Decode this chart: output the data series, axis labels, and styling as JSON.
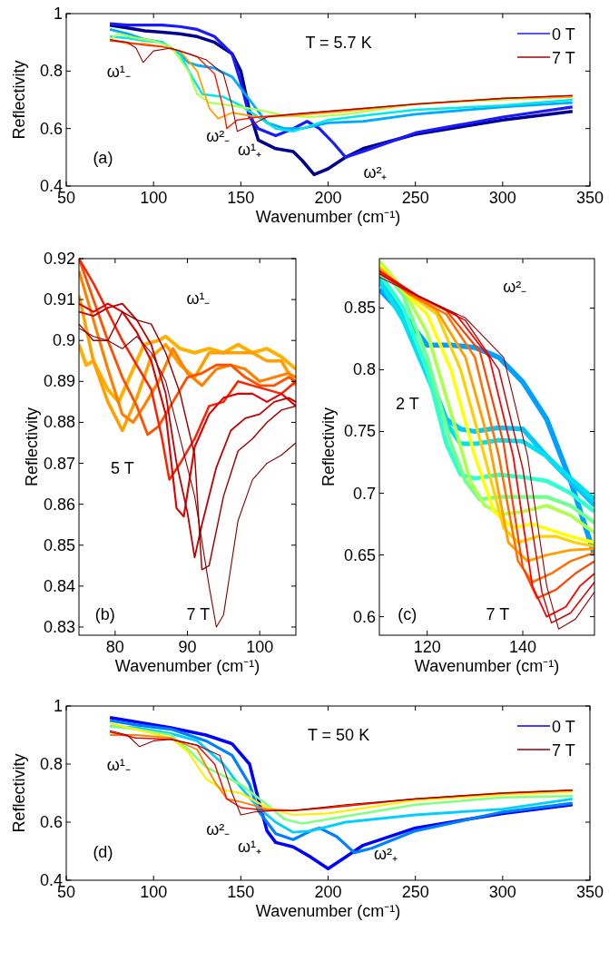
{
  "chart_data": [
    {
      "type": "line",
      "xlabel": "Wavenumber (cm⁻¹)",
      "ylabel": "Reflectivity",
      "xlim": [
        50,
        350
      ],
      "ylim": [
        0.4,
        1
      ],
      "xticks": [
        50,
        100,
        150,
        200,
        250,
        300,
        350
      ],
      "yticks": [
        0.4,
        0.6,
        0.8,
        1
      ],
      "legend": "top right",
      "annotations": [
        "T = 5.7 K",
        "(a)",
        "ω¹₋",
        "ω²₋",
        "ω¹₊",
        "ω²₊"
      ],
      "series": [
        {
          "color": "#00008f",
          "x": [
            75,
            85,
            95,
            105,
            115,
            125,
            135,
            145,
            150,
            155,
            160,
            170,
            180,
            185,
            192,
            200,
            210,
            220,
            250,
            300,
            340
          ],
          "values": [
            0.96,
            0.95,
            0.94,
            0.935,
            0.93,
            0.92,
            0.9,
            0.86,
            0.8,
            0.66,
            0.56,
            0.53,
            0.52,
            0.49,
            0.44,
            0.46,
            0.5,
            0.53,
            0.58,
            0.63,
            0.66
          ]
        },
        {
          "name": "0 T",
          "color": "#1a1aff",
          "x": [
            75,
            85,
            95,
            105,
            115,
            125,
            135,
            145,
            150,
            155,
            160,
            170,
            180,
            188,
            195,
            203,
            210,
            220,
            250,
            300,
            340
          ],
          "values": [
            0.965,
            0.96,
            0.96,
            0.96,
            0.955,
            0.945,
            0.92,
            0.86,
            0.76,
            0.64,
            0.6,
            0.575,
            0.6,
            0.625,
            0.6,
            0.55,
            0.5,
            0.52,
            0.585,
            0.64,
            0.675
          ]
        },
        {
          "color": "#00aaff",
          "x": [
            75,
            85,
            95,
            105,
            115,
            120,
            125,
            135,
            145,
            155,
            165,
            175,
            185,
            200,
            220,
            250,
            300,
            340
          ],
          "values": [
            0.945,
            0.93,
            0.91,
            0.9,
            0.86,
            0.83,
            0.82,
            0.81,
            0.78,
            0.7,
            0.62,
            0.6,
            0.6,
            0.62,
            0.625,
            0.65,
            0.675,
            0.69
          ]
        },
        {
          "color": "#00e8e8",
          "x": [
            75,
            85,
            95,
            105,
            115,
            122,
            128,
            140,
            150,
            160,
            170,
            180,
            200,
            220,
            250,
            300,
            340
          ],
          "values": [
            0.92,
            0.915,
            0.905,
            0.9,
            0.86,
            0.78,
            0.72,
            0.71,
            0.68,
            0.64,
            0.6,
            0.59,
            0.63,
            0.645,
            0.665,
            0.68,
            0.7
          ]
        },
        {
          "color": "#b0ff50",
          "x": [
            75,
            80,
            90,
            100,
            110,
            120,
            125,
            132,
            145,
            160,
            175,
            190,
            210,
            250,
            300,
            340
          ],
          "values": [
            0.91,
            0.93,
            0.915,
            0.905,
            0.885,
            0.8,
            0.72,
            0.69,
            0.68,
            0.665,
            0.645,
            0.64,
            0.65,
            0.685,
            0.7,
            0.71
          ]
        },
        {
          "color": "#ffa000",
          "x": [
            75,
            85,
            95,
            105,
            115,
            125,
            132,
            137,
            145,
            160,
            180,
            210,
            250,
            300,
            340
          ],
          "values": [
            0.91,
            0.895,
            0.895,
            0.885,
            0.87,
            0.8,
            0.67,
            0.635,
            0.655,
            0.64,
            0.645,
            0.66,
            0.685,
            0.705,
            0.71
          ]
        },
        {
          "color": "#ff2000",
          "x": [
            75,
            85,
            95,
            105,
            115,
            125,
            135,
            140,
            142,
            148,
            160,
            180,
            210,
            250,
            300,
            340
          ],
          "values": [
            0.905,
            0.9,
            0.89,
            0.885,
            0.87,
            0.85,
            0.79,
            0.67,
            0.6,
            0.63,
            0.64,
            0.65,
            0.665,
            0.685,
            0.705,
            0.715
          ]
        },
        {
          "name": "7 T",
          "color": "#a00000",
          "x": [
            75,
            85,
            90,
            94,
            100,
            110,
            120,
            130,
            140,
            145,
            148,
            155,
            165,
            180,
            210,
            250,
            300,
            340
          ],
          "values": [
            0.91,
            0.9,
            0.88,
            0.83,
            0.87,
            0.88,
            0.86,
            0.84,
            0.79,
            0.68,
            0.59,
            0.61,
            0.64,
            0.65,
            0.665,
            0.685,
            0.705,
            0.715
          ]
        }
      ]
    },
    {
      "type": "line",
      "xlabel": "Wavenumber (cm⁻¹)",
      "ylabel": "Reflectivity",
      "xlim": [
        75,
        105
      ],
      "ylim": [
        0.828,
        0.92
      ],
      "xticks": [
        80,
        90,
        100
      ],
      "yticks": [
        0.83,
        0.84,
        0.85,
        0.86,
        0.87,
        0.88,
        0.89,
        0.9,
        0.91,
        0.92
      ],
      "annotations": [
        "(b)",
        "ω¹₋",
        "5 T",
        "7 T"
      ],
      "series": [
        {
          "color": "#ffb000",
          "x": [
            75,
            76,
            77,
            79,
            80.5,
            82,
            84,
            86,
            87,
            89,
            91,
            93,
            95,
            97,
            99,
            101,
            103,
            105
          ],
          "values": [
            0.899,
            0.894,
            0.895,
            0.888,
            0.885,
            0.891,
            0.899,
            0.9,
            0.901,
            0.898,
            0.897,
            0.898,
            0.897,
            0.899,
            0.897,
            0.898,
            0.896,
            0.893
          ]
        },
        {
          "color": "#ffa000",
          "x": [
            75,
            77,
            79,
            81,
            83,
            85,
            87,
            89,
            91,
            93,
            95,
            97,
            99,
            101,
            103,
            105
          ],
          "values": [
            0.911,
            0.895,
            0.885,
            0.878,
            0.886,
            0.896,
            0.899,
            0.894,
            0.891,
            0.897,
            0.897,
            0.897,
            0.897,
            0.895,
            0.895,
            0.889
          ]
        },
        {
          "color": "#ff8000",
          "x": [
            75,
            77,
            79,
            81,
            82.5,
            84,
            86,
            88,
            90,
            92,
            94,
            96,
            98,
            100,
            102,
            104,
            105
          ],
          "values": [
            0.917,
            0.905,
            0.893,
            0.882,
            0.88,
            0.884,
            0.89,
            0.898,
            0.892,
            0.889,
            0.893,
            0.894,
            0.893,
            0.89,
            0.891,
            0.892,
            0.891
          ]
        },
        {
          "color": "#ff5000",
          "x": [
            75,
            77,
            79,
            81,
            83,
            84.5,
            86,
            88,
            90,
            92,
            94,
            96,
            98,
            100,
            102,
            104,
            105
          ],
          "values": [
            0.92,
            0.91,
            0.9,
            0.891,
            0.884,
            0.877,
            0.879,
            0.885,
            0.891,
            0.892,
            0.894,
            0.894,
            0.891,
            0.889,
            0.889,
            0.891,
            0.89
          ]
        },
        {
          "color": "#ff2000",
          "x": [
            75,
            77,
            79,
            81,
            83,
            85,
            86.5,
            87.5,
            89,
            91,
            93,
            95,
            97,
            99,
            101,
            103,
            105
          ],
          "values": [
            0.92,
            0.914,
            0.907,
            0.9,
            0.894,
            0.888,
            0.876,
            0.866,
            0.87,
            0.876,
            0.884,
            0.885,
            0.89,
            0.889,
            0.888,
            0.887,
            0.89
          ]
        },
        {
          "color": "#e00000",
          "x": [
            75,
            77,
            79,
            81,
            83,
            85,
            87,
            88.5,
            89.5,
            91,
            93,
            95,
            97,
            99,
            101,
            103,
            105
          ],
          "values": [
            0.909,
            0.907,
            0.909,
            0.907,
            0.902,
            0.895,
            0.882,
            0.859,
            0.857,
            0.874,
            0.882,
            0.886,
            0.887,
            0.887,
            0.885,
            0.887,
            0.884
          ]
        },
        {
          "color": "#c00000",
          "x": [
            75,
            77,
            79,
            81,
            83,
            85,
            87,
            88.5,
            90,
            91,
            92,
            94,
            96,
            98,
            100,
            102,
            104,
            105
          ],
          "values": [
            0.907,
            0.906,
            0.908,
            0.909,
            0.905,
            0.899,
            0.887,
            0.87,
            0.858,
            0.847,
            0.855,
            0.869,
            0.878,
            0.881,
            0.882,
            0.885,
            0.886,
            0.885
          ]
        },
        {
          "color": "#a00000",
          "x": [
            75,
            77,
            79,
            81,
            83,
            85,
            87,
            89,
            91,
            92,
            93,
            95,
            97,
            99,
            101,
            103,
            105
          ],
          "values": [
            0.904,
            0.9,
            0.9,
            0.907,
            0.905,
            0.904,
            0.897,
            0.887,
            0.872,
            0.844,
            0.845,
            0.862,
            0.873,
            0.876,
            0.88,
            0.883,
            0.884
          ]
        },
        {
          "color": "#800000",
          "x": [
            75,
            77,
            79,
            81,
            83,
            85,
            87,
            89,
            91,
            93,
            94,
            95,
            97,
            99,
            101,
            103,
            105
          ],
          "values": [
            0.903,
            0.901,
            0.9,
            0.898,
            0.901,
            0.897,
            0.89,
            0.876,
            0.862,
            0.84,
            0.83,
            0.833,
            0.856,
            0.866,
            0.87,
            0.872,
            0.875
          ]
        }
      ]
    },
    {
      "type": "line",
      "xlabel": "Wavenumber (cm⁻¹)",
      "ylabel": "Reflectivity",
      "xlim": [
        110,
        155
      ],
      "ylim": [
        0.585,
        0.89
      ],
      "xticks": [
        120,
        140
      ],
      "yticks": [
        0.6,
        0.65,
        0.7,
        0.75,
        0.8,
        0.85
      ],
      "annotations": [
        "(c)",
        "ω²₋",
        "2 T",
        "7 T"
      ],
      "series": [
        {
          "color": "#00a0ff",
          "x": [
            110,
            115,
            120,
            125,
            130,
            135,
            140,
            145,
            150,
            155
          ],
          "values": [
            0.865,
            0.845,
            0.82,
            0.82,
            0.818,
            0.81,
            0.79,
            0.76,
            0.71,
            0.65
          ]
        },
        {
          "color": "#00c8ff",
          "x": [
            110,
            115,
            120,
            124,
            127,
            130,
            135,
            140,
            145,
            150,
            155
          ],
          "values": [
            0.875,
            0.845,
            0.8,
            0.76,
            0.752,
            0.75,
            0.753,
            0.752,
            0.73,
            0.71,
            0.69
          ]
        },
        {
          "color": "#00e0f0",
          "x": [
            110,
            115,
            120,
            124,
            127,
            130,
            135,
            140,
            145,
            150,
            155
          ],
          "values": [
            0.872,
            0.84,
            0.795,
            0.757,
            0.74,
            0.74,
            0.743,
            0.742,
            0.73,
            0.712,
            0.695
          ]
        },
        {
          "color": "#30ffd0",
          "x": [
            110,
            115,
            120,
            124,
            127,
            130,
            135,
            140,
            145,
            150,
            155
          ],
          "values": [
            0.878,
            0.85,
            0.8,
            0.74,
            0.715,
            0.712,
            0.715,
            0.713,
            0.71,
            0.7,
            0.685
          ]
        },
        {
          "color": "#70ff90",
          "x": [
            110,
            115,
            120,
            125,
            128,
            131,
            135,
            140,
            145,
            150,
            155
          ],
          "values": [
            0.885,
            0.86,
            0.81,
            0.74,
            0.71,
            0.695,
            0.697,
            0.697,
            0.697,
            0.69,
            0.676
          ]
        },
        {
          "color": "#b0ff50",
          "x": [
            110,
            115,
            120,
            125,
            129,
            132,
            136,
            140,
            145,
            150,
            155
          ],
          "values": [
            0.888,
            0.865,
            0.83,
            0.765,
            0.71,
            0.69,
            0.683,
            0.685,
            0.69,
            0.682,
            0.668
          ]
        },
        {
          "color": "#ffff00",
          "x": [
            110,
            116,
            120,
            125,
            130,
            134,
            138,
            142,
            146,
            150,
            155
          ],
          "values": [
            0.885,
            0.86,
            0.845,
            0.8,
            0.73,
            0.685,
            0.672,
            0.675,
            0.67,
            0.665,
            0.66
          ]
        },
        {
          "color": "#ffd000",
          "x": [
            110,
            116,
            122,
            127,
            132,
            136,
            139,
            143,
            147,
            151,
            155
          ],
          "values": [
            0.883,
            0.862,
            0.845,
            0.8,
            0.73,
            0.672,
            0.66,
            0.665,
            0.665,
            0.66,
            0.657
          ]
        },
        {
          "color": "#ffa000",
          "x": [
            110,
            116,
            122,
            128,
            133,
            137,
            141,
            145,
            150,
            155
          ],
          "values": [
            0.882,
            0.862,
            0.848,
            0.81,
            0.74,
            0.66,
            0.645,
            0.65,
            0.654,
            0.655
          ]
        },
        {
          "color": "#ff7000",
          "x": [
            110,
            116,
            124,
            130,
            135,
            139,
            142,
            146,
            150,
            155
          ],
          "values": [
            0.88,
            0.862,
            0.845,
            0.81,
            0.73,
            0.645,
            0.628,
            0.635,
            0.645,
            0.652
          ]
        },
        {
          "color": "#ff4000",
          "x": [
            110,
            116,
            124,
            131,
            136,
            140,
            143,
            147,
            151,
            155
          ],
          "values": [
            0.878,
            0.863,
            0.848,
            0.815,
            0.74,
            0.64,
            0.615,
            0.622,
            0.635,
            0.645
          ]
        },
        {
          "color": "#ff0000",
          "x": [
            110,
            118,
            126,
            133,
            138,
            142,
            145,
            149,
            152,
            155
          ],
          "values": [
            0.88,
            0.86,
            0.845,
            0.81,
            0.73,
            0.625,
            0.6,
            0.608,
            0.625,
            0.635
          ]
        },
        {
          "color": "#d00000",
          "x": [
            110,
            118,
            128,
            135,
            140,
            144,
            146,
            150,
            155
          ],
          "values": [
            0.878,
            0.86,
            0.84,
            0.8,
            0.72,
            0.62,
            0.595,
            0.603,
            0.628
          ]
        },
        {
          "color": "#900000",
          "x": [
            110,
            118,
            128,
            136,
            141,
            145,
            147.5,
            151,
            155
          ],
          "values": [
            0.875,
            0.86,
            0.842,
            0.81,
            0.73,
            0.625,
            0.59,
            0.598,
            0.62
          ]
        }
      ]
    },
    {
      "type": "line",
      "xlabel": "Wavenumber (cm⁻¹)",
      "ylabel": "Reflectivity",
      "xlim": [
        50,
        350
      ],
      "ylim": [
        0.4,
        1
      ],
      "xticks": [
        50,
        100,
        150,
        200,
        250,
        300,
        350
      ],
      "yticks": [
        0.4,
        0.6,
        0.8,
        1
      ],
      "legend": "top right",
      "annotations": [
        "T = 50 K",
        "(d)",
        "ω¹₋",
        "ω²₋",
        "ω¹₊",
        "ω²₊"
      ],
      "series": [
        {
          "name": "0 T",
          "color": "#0000ff",
          "x": [
            75,
            90,
            110,
            130,
            145,
            155,
            160,
            165,
            170,
            180,
            190,
            200,
            210,
            220,
            250,
            300,
            340
          ],
          "values": [
            0.96,
            0.945,
            0.925,
            0.9,
            0.87,
            0.8,
            0.68,
            0.57,
            0.53,
            0.515,
            0.48,
            0.44,
            0.48,
            0.52,
            0.58,
            0.63,
            0.66
          ]
        },
        {
          "color": "#0080ff",
          "x": [
            75,
            90,
            110,
            130,
            145,
            155,
            160,
            170,
            180,
            190,
            195,
            205,
            215,
            225,
            250,
            300,
            340
          ],
          "values": [
            0.95,
            0.935,
            0.92,
            0.88,
            0.83,
            0.73,
            0.64,
            0.56,
            0.54,
            0.57,
            0.58,
            0.55,
            0.495,
            0.51,
            0.57,
            0.635,
            0.665
          ]
        },
        {
          "color": "#00d0ff",
          "x": [
            75,
            90,
            110,
            125,
            140,
            150,
            160,
            170,
            180,
            190,
            210,
            250,
            300,
            340
          ],
          "values": [
            0.93,
            0.925,
            0.905,
            0.88,
            0.8,
            0.72,
            0.65,
            0.6,
            0.565,
            0.57,
            0.6,
            0.625,
            0.645,
            0.68
          ]
        },
        {
          "color": "#80ff80",
          "x": [
            75,
            90,
            110,
            120,
            130,
            140,
            150,
            165,
            175,
            185,
            200,
            250,
            300,
            340
          ],
          "values": [
            0.93,
            0.92,
            0.9,
            0.85,
            0.79,
            0.76,
            0.73,
            0.66,
            0.61,
            0.595,
            0.61,
            0.66,
            0.685,
            0.69
          ]
        },
        {
          "color": "#ffee00",
          "x": [
            75,
            90,
            110,
            120,
            130,
            140,
            150,
            165,
            180,
            200,
            250,
            300,
            340
          ],
          "values": [
            0.94,
            0.92,
            0.89,
            0.84,
            0.75,
            0.71,
            0.7,
            0.65,
            0.625,
            0.63,
            0.675,
            0.695,
            0.705
          ]
        },
        {
          "color": "#ff8000",
          "x": [
            75,
            90,
            110,
            125,
            135,
            142,
            150,
            165,
            180,
            200,
            250,
            300,
            340
          ],
          "values": [
            0.9,
            0.9,
            0.89,
            0.85,
            0.74,
            0.68,
            0.67,
            0.645,
            0.64,
            0.65,
            0.68,
            0.7,
            0.71
          ]
        },
        {
          "color": "#ff0000",
          "x": [
            75,
            90,
            110,
            125,
            135,
            142,
            150,
            165,
            180,
            210,
            250,
            300,
            340
          ],
          "values": [
            0.91,
            0.89,
            0.885,
            0.865,
            0.8,
            0.68,
            0.65,
            0.64,
            0.64,
            0.655,
            0.68,
            0.7,
            0.71
          ]
        },
        {
          "name": "7 T",
          "color": "#900000",
          "x": [
            75,
            85,
            92,
            100,
            110,
            125,
            138,
            145,
            150,
            158,
            170,
            180,
            210,
            250,
            300,
            340
          ],
          "values": [
            0.915,
            0.9,
            0.86,
            0.88,
            0.885,
            0.865,
            0.83,
            0.7,
            0.625,
            0.635,
            0.64,
            0.64,
            0.66,
            0.68,
            0.7,
            0.71
          ]
        }
      ]
    }
  ]
}
